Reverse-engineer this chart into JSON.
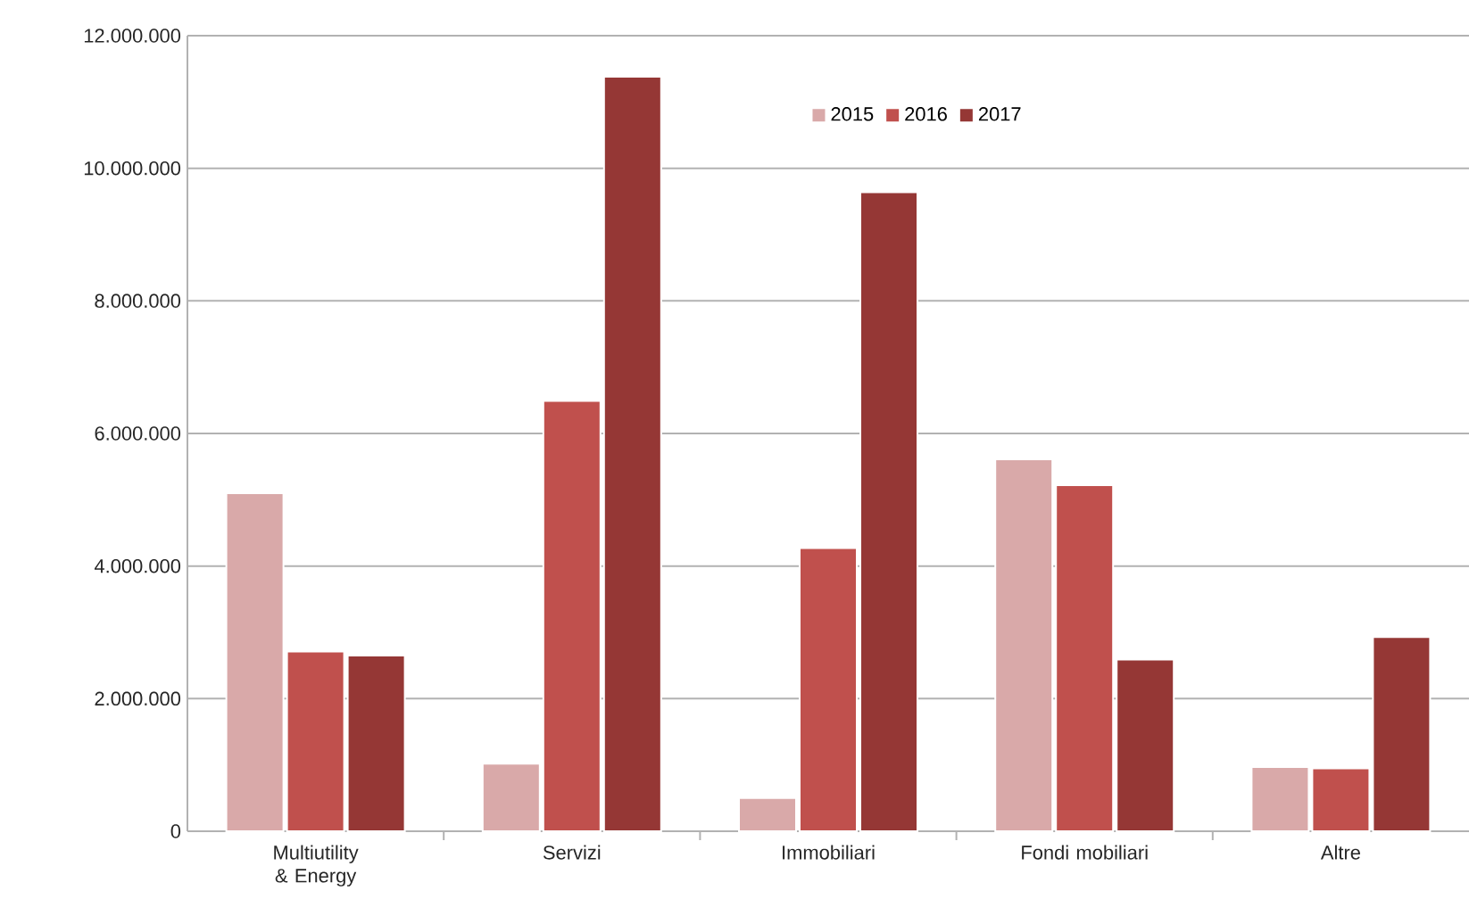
{
  "chart_data": {
    "type": "bar",
    "categories": [
      "Multiutility & Energy",
      "Servizi",
      "Immobiliari",
      "Fondi mobiliari",
      "Altre"
    ],
    "series": [
      {
        "name": "2015",
        "color": "#d9a9a9",
        "values": [
          5100000,
          1020000,
          500000,
          5610000,
          970000
        ]
      },
      {
        "name": "2016",
        "color": "#c0504d",
        "values": [
          2710000,
          6490000,
          4270000,
          5220000,
          950000
        ]
      },
      {
        "name": "2017",
        "color": "#953735",
        "values": [
          2650000,
          11380000,
          9640000,
          2590000,
          2930000
        ]
      }
    ],
    "ylim": [
      0,
      12000000
    ],
    "yticks": [
      0,
      {
        "value": 2000000,
        "label": "2.000.000"
      },
      {
        "value": 4000000,
        "label": "4.000.000"
      },
      {
        "value": 6000000,
        "label": "6.000.000"
      },
      {
        "value": 8000000,
        "label": "8.000.000"
      },
      {
        "value": 10000000,
        "label": "10.000.000"
      },
      {
        "value": 12000000,
        "label": "12.000.000"
      }
    ],
    "grid": "y",
    "legend": "top"
  }
}
